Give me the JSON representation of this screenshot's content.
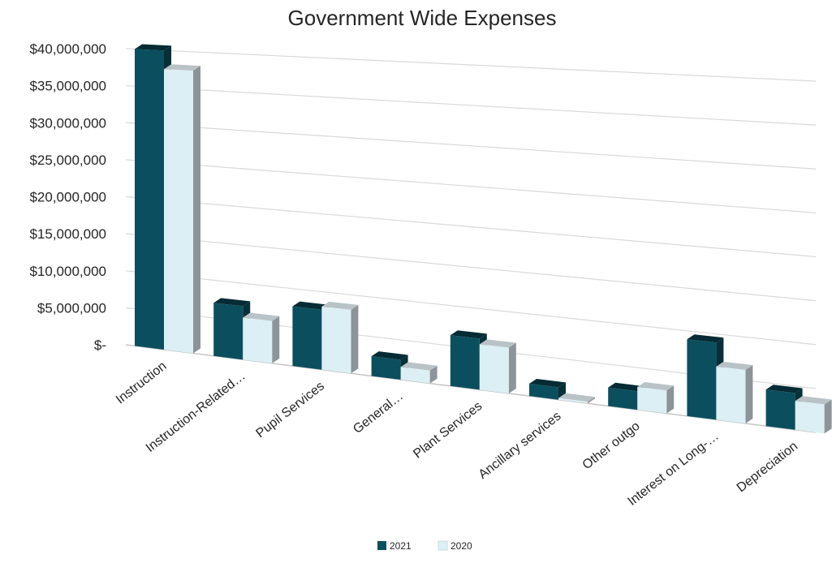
{
  "chart_data": {
    "type": "bar",
    "title": "Government Wide Expenses",
    "xlabel": "",
    "ylabel": "",
    "categories": [
      "Instruction",
      "Instruction-Related…",
      "Pupil Services",
      "General…",
      "Plant Services",
      "Ancillary services",
      "Other outgo",
      "Interest on Long-…",
      "Depreciation"
    ],
    "series": [
      {
        "name": "2021",
        "color": "#0b4f5e",
        "values": [
          40000000,
          7000000,
          7700000,
          2500000,
          6300000,
          1500000,
          2200000,
          9000000,
          4200000
        ]
      },
      {
        "name": "2020",
        "color": "#dceff5",
        "values": [
          37500000,
          5500000,
          8100000,
          1600000,
          5600000,
          200000,
          2700000,
          6200000,
          3300000
        ]
      }
    ],
    "ylim": [
      0,
      40000000
    ],
    "yticks": [
      {
        "value": 0,
        "label": "$-"
      },
      {
        "value": 5000000,
        "label": "$5,000,000"
      },
      {
        "value": 10000000,
        "label": "$10,000,000"
      },
      {
        "value": 15000000,
        "label": "$15,000,000"
      },
      {
        "value": 20000000,
        "label": "$20,000,000"
      },
      {
        "value": 25000000,
        "label": "$25,000,000"
      },
      {
        "value": 30000000,
        "label": "$30,000,000"
      },
      {
        "value": 35000000,
        "label": "$35,000,000"
      },
      {
        "value": 40000000,
        "label": "$40,000,000"
      }
    ],
    "grid": true,
    "legend": "bottom",
    "style": "3d-clustered-column"
  }
}
